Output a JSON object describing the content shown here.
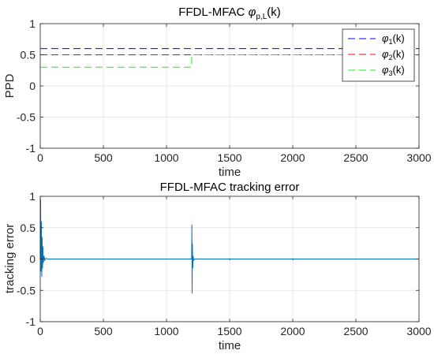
{
  "chart_data": [
    {
      "type": "line",
      "title": "FFDL-MFAC",
      "title_symbol": "φ",
      "title_subscript": "p,L",
      "title_suffix": "(k)",
      "xlabel": "time",
      "ylabel": "PPD",
      "xlim": [
        0,
        3000
      ],
      "ylim": [
        -1,
        1
      ],
      "xticks": [
        0,
        500,
        1000,
        1500,
        2000,
        2500,
        3000
      ],
      "yticks": [
        -1,
        -0.5,
        0,
        0.5,
        1
      ],
      "xtick_labels": [
        "0",
        "500",
        "1000",
        "1500",
        "2000",
        "2500",
        "3000"
      ],
      "ytick_labels": [
        "-1",
        "-0.5",
        "0",
        "0.5",
        "1"
      ],
      "grid": true,
      "legend_position": "top-right",
      "series": [
        {
          "symbol": "φ",
          "subscript": "1",
          "suffix": "(k)",
          "color": "#0000ff",
          "dash": "dashed",
          "points": [
            [
              0,
              0.6
            ],
            [
              3000,
              0.6
            ]
          ]
        },
        {
          "symbol": "φ",
          "subscript": "2",
          "suffix": "(k)",
          "color": "#ff0000",
          "dash": "dashed",
          "points": [
            [
              0,
              0.5
            ],
            [
              3000,
              0.5
            ]
          ]
        },
        {
          "symbol": "φ",
          "subscript": "3",
          "suffix": "(k)",
          "color": "#00ff00",
          "dash": "dashed",
          "points": [
            [
              0,
              0.3
            ],
            [
              1200,
              0.3
            ],
            [
              1200,
              0.5
            ],
            [
              3000,
              0.5
            ]
          ]
        }
      ]
    },
    {
      "type": "line",
      "title": "FFDL-MFAC tracking error",
      "xlabel": "time",
      "ylabel": "tracking error",
      "xlim": [
        0,
        3000
      ],
      "ylim": [
        -1,
        1
      ],
      "xticks": [
        0,
        500,
        1000,
        1500,
        2000,
        2500,
        3000
      ],
      "yticks": [
        -1,
        -0.5,
        0,
        0.5,
        1
      ],
      "xtick_labels": [
        "0",
        "500",
        "1000",
        "1500",
        "2000",
        "2500",
        "3000"
      ],
      "ytick_labels": [
        "-1",
        "-0.5",
        "0",
        "0.5",
        "1"
      ],
      "grid": true,
      "series": [
        {
          "color": "#0072bd",
          "points": [
            [
              0,
              0
            ],
            [
              3,
              0.95
            ],
            [
              6,
              -0.2
            ],
            [
              9,
              0.6
            ],
            [
              12,
              -0.28
            ],
            [
              15,
              0.35
            ],
            [
              18,
              -0.15
            ],
            [
              21,
              0.2
            ],
            [
              25,
              -0.06
            ],
            [
              30,
              0.05
            ],
            [
              36,
              -0.02
            ],
            [
              45,
              0.01
            ],
            [
              60,
              0
            ],
            [
              1199,
              0
            ],
            [
              1201,
              0.55
            ],
            [
              1203,
              -0.55
            ],
            [
              1205,
              0.25
            ],
            [
              1208,
              -0.15
            ],
            [
              1211,
              0.05
            ],
            [
              1215,
              -0.02
            ],
            [
              1225,
              0
            ],
            [
              1499,
              0
            ],
            [
              1500,
              0.01
            ],
            [
              1501,
              -0.02
            ],
            [
              1503,
              0
            ],
            [
              1999,
              0
            ],
            [
              2000,
              0.01
            ],
            [
              2001,
              -0.02
            ],
            [
              2003,
              0
            ],
            [
              3000,
              0
            ]
          ]
        }
      ]
    }
  ]
}
